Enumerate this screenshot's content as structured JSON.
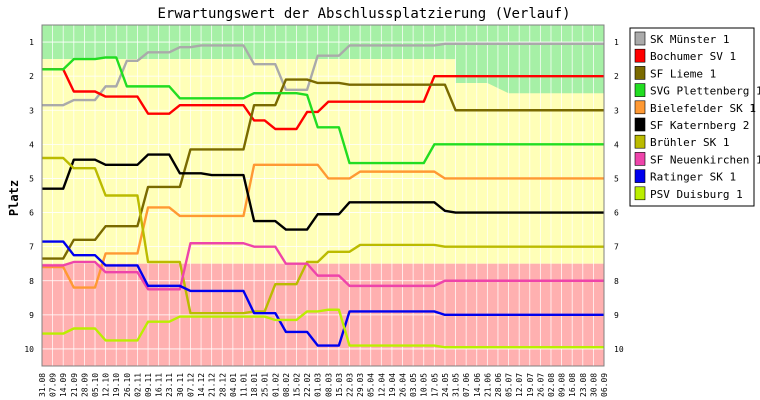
{
  "chart_data": {
    "type": "line",
    "title": "Erwartungswert der Abschlussplatzierung (Verlauf)",
    "ylabel": "Platz",
    "xlabel": "",
    "ylim": [
      0.5,
      10.5
    ],
    "y_inverted": true,
    "yticks": [
      "1",
      "2",
      "3",
      "4",
      "5",
      "6",
      "7",
      "8",
      "9",
      "10"
    ],
    "grid": true,
    "legend_position": "right",
    "background_zones": [
      {
        "name": "top",
        "color": "#a6f0a6",
        "from": 0.5,
        "to": 1.5,
        "until_category": "24.05"
      },
      {
        "name": "middle",
        "color": "#ffffb8",
        "from": 1.5,
        "to": 7.5
      },
      {
        "name": "bottom",
        "color": "#ffb0b0",
        "from": 7.5,
        "to": 10.5
      }
    ],
    "categories": [
      "31.08",
      "07.09",
      "14.09",
      "21.09",
      "28.09",
      "05.10",
      "12.10",
      "19.10",
      "26.10",
      "02.11",
      "09.11",
      "16.11",
      "23.11",
      "30.11",
      "07.12",
      "14.12",
      "21.12",
      "28.12",
      "04.01",
      "11.01",
      "18.01",
      "25.01",
      "01.02",
      "08.02",
      "15.02",
      "22.02",
      "01.03",
      "08.03",
      "15.03",
      "22.03",
      "29.03",
      "05.04",
      "12.04",
      "19.04",
      "26.04",
      "03.05",
      "10.05",
      "17.05",
      "24.05",
      "31.05",
      "07.06",
      "14.06",
      "21.06",
      "28.06",
      "05.07",
      "12.07",
      "19.07",
      "26.07",
      "02.08",
      "09.08",
      "16.08",
      "23.08",
      "30.08",
      "06.09"
    ],
    "series": [
      {
        "name": "SK Münster 1",
        "color": "#aaaaaa",
        "values": [
          2.85,
          2.85,
          2.85,
          2.7,
          2.7,
          2.7,
          2.3,
          2.3,
          1.55,
          1.55,
          1.3,
          1.3,
          1.3,
          1.15,
          1.15,
          1.1,
          1.1,
          1.1,
          1.1,
          1.1,
          1.65,
          1.65,
          1.65,
          2.4,
          2.4,
          2.4,
          1.4,
          1.4,
          1.4,
          1.1,
          1.1,
          1.1,
          1.1,
          1.1,
          1.1,
          1.1,
          1.1,
          1.1,
          1.05,
          1.05,
          1.05,
          1.05,
          1.05,
          1.05,
          1.05,
          1.05,
          1.05,
          1.05,
          1.05,
          1.05,
          1.05,
          1.05,
          1.05,
          1.05
        ]
      },
      {
        "name": "Bochumer SV 1",
        "color": "#ff0000",
        "values": [
          1.8,
          1.8,
          1.8,
          2.45,
          2.45,
          2.45,
          2.6,
          2.6,
          2.6,
          2.6,
          3.1,
          3.1,
          3.1,
          2.85,
          2.85,
          2.85,
          2.85,
          2.85,
          2.85,
          2.85,
          3.3,
          3.3,
          3.55,
          3.55,
          3.55,
          3.05,
          3.05,
          2.75,
          2.75,
          2.75,
          2.75,
          2.75,
          2.75,
          2.75,
          2.75,
          2.75,
          2.75,
          2.0,
          2.0,
          2.0,
          2.0,
          2.0,
          2.0,
          2.0,
          2.0,
          2.0,
          2.0,
          2.0,
          2.0,
          2.0,
          2.0,
          2.0,
          2.0,
          2.0
        ]
      },
      {
        "name": "SF Lieme 1",
        "color": "#7a6a00",
        "values": [
          7.35,
          7.35,
          7.35,
          6.8,
          6.8,
          6.8,
          6.4,
          6.4,
          6.4,
          6.4,
          5.25,
          5.25,
          5.25,
          5.25,
          4.15,
          4.15,
          4.15,
          4.15,
          4.15,
          4.15,
          2.85,
          2.85,
          2.85,
          2.1,
          2.1,
          2.1,
          2.2,
          2.2,
          2.2,
          2.25,
          2.25,
          2.25,
          2.25,
          2.25,
          2.25,
          2.25,
          2.25,
          2.25,
          2.25,
          3.0,
          3.0,
          3.0,
          3.0,
          3.0,
          3.0,
          3.0,
          3.0,
          3.0,
          3.0,
          3.0,
          3.0,
          3.0,
          3.0,
          3.0
        ]
      },
      {
        "name": "SVG Plettenberg 1",
        "color": "#22dd22",
        "values": [
          1.8,
          1.8,
          1.8,
          1.5,
          1.5,
          1.5,
          1.45,
          1.45,
          2.3,
          2.3,
          2.3,
          2.3,
          2.3,
          2.65,
          2.65,
          2.65,
          2.65,
          2.65,
          2.65,
          2.65,
          2.5,
          2.5,
          2.5,
          2.5,
          2.5,
          2.55,
          3.5,
          3.5,
          3.5,
          4.55,
          4.55,
          4.55,
          4.55,
          4.55,
          4.55,
          4.55,
          4.55,
          4.0,
          4.0,
          4.0,
          4.0,
          4.0,
          4.0,
          4.0,
          4.0,
          4.0,
          4.0,
          4.0,
          4.0,
          4.0,
          4.0,
          4.0,
          4.0,
          4.0
        ]
      },
      {
        "name": "Bielefelder SK 1",
        "color": "#ff9933",
        "values": [
          7.6,
          7.6,
          7.6,
          8.2,
          8.2,
          8.2,
          7.2,
          7.2,
          7.2,
          7.2,
          5.85,
          5.85,
          5.85,
          6.1,
          6.1,
          6.1,
          6.1,
          6.1,
          6.1,
          6.1,
          4.6,
          4.6,
          4.6,
          4.6,
          4.6,
          4.6,
          4.6,
          5.0,
          5.0,
          5.0,
          4.8,
          4.8,
          4.8,
          4.8,
          4.8,
          4.8,
          4.8,
          4.8,
          5.0,
          5.0,
          5.0,
          5.0,
          5.0,
          5.0,
          5.0,
          5.0,
          5.0,
          5.0,
          5.0,
          5.0,
          5.0,
          5.0,
          5.0,
          5.0
        ]
      },
      {
        "name": "SF Katernberg 2",
        "color": "#000000",
        "values": [
          5.3,
          5.3,
          5.3,
          4.45,
          4.45,
          4.45,
          4.6,
          4.6,
          4.6,
          4.6,
          4.3,
          4.3,
          4.3,
          4.85,
          4.85,
          4.85,
          4.9,
          4.9,
          4.9,
          4.9,
          6.25,
          6.25,
          6.25,
          6.5,
          6.5,
          6.5,
          6.05,
          6.05,
          6.05,
          5.7,
          5.7,
          5.7,
          5.7,
          5.7,
          5.7,
          5.7,
          5.7,
          5.7,
          5.95,
          6.0,
          6.0,
          6.0,
          6.0,
          6.0,
          6.0,
          6.0,
          6.0,
          6.0,
          6.0,
          6.0,
          6.0,
          6.0,
          6.0,
          6.0
        ]
      },
      {
        "name": "Brühler SK 1",
        "color": "#bbbb00",
        "values": [
          4.4,
          4.4,
          4.4,
          4.7,
          4.7,
          4.7,
          5.5,
          5.5,
          5.5,
          5.5,
          7.45,
          7.45,
          7.45,
          7.45,
          8.95,
          8.95,
          8.95,
          8.95,
          8.95,
          8.95,
          8.9,
          8.9,
          8.1,
          8.1,
          8.1,
          7.45,
          7.45,
          7.15,
          7.15,
          7.15,
          6.95,
          6.95,
          6.95,
          6.95,
          6.95,
          6.95,
          6.95,
          6.95,
          7.0,
          7.0,
          7.0,
          7.0,
          7.0,
          7.0,
          7.0,
          7.0,
          7.0,
          7.0,
          7.0,
          7.0,
          7.0,
          7.0,
          7.0,
          7.0
        ]
      },
      {
        "name": "SF Neuenkirchen 1",
        "color": "#ee44aa",
        "values": [
          7.55,
          7.55,
          7.55,
          7.45,
          7.45,
          7.45,
          7.75,
          7.75,
          7.75,
          7.75,
          8.25,
          8.25,
          8.25,
          8.25,
          6.9,
          6.9,
          6.9,
          6.9,
          6.9,
          6.9,
          7.0,
          7.0,
          7.0,
          7.5,
          7.5,
          7.5,
          7.85,
          7.85,
          7.85,
          8.15,
          8.15,
          8.15,
          8.15,
          8.15,
          8.15,
          8.15,
          8.15,
          8.15,
          8.0,
          8.0,
          8.0,
          8.0,
          8.0,
          8.0,
          8.0,
          8.0,
          8.0,
          8.0,
          8.0,
          8.0,
          8.0,
          8.0,
          8.0,
          8.0
        ]
      },
      {
        "name": "Ratinger SK 1",
        "color": "#0000ee",
        "values": [
          6.85,
          6.85,
          6.85,
          7.25,
          7.25,
          7.25,
          7.55,
          7.55,
          7.55,
          7.55,
          8.15,
          8.15,
          8.15,
          8.15,
          8.3,
          8.3,
          8.3,
          8.3,
          8.3,
          8.3,
          8.95,
          8.95,
          8.95,
          9.5,
          9.5,
          9.5,
          9.9,
          9.9,
          9.9,
          8.9,
          8.9,
          8.9,
          8.9,
          8.9,
          8.9,
          8.9,
          8.9,
          8.9,
          9.0,
          9.0,
          9.0,
          9.0,
          9.0,
          9.0,
          9.0,
          9.0,
          9.0,
          9.0,
          9.0,
          9.0,
          9.0,
          9.0,
          9.0,
          9.0
        ]
      },
      {
        "name": "PSV Duisburg 1",
        "color": "#bbee00",
        "values": [
          9.55,
          9.55,
          9.55,
          9.4,
          9.4,
          9.4,
          9.75,
          9.75,
          9.75,
          9.75,
          9.2,
          9.2,
          9.2,
          9.05,
          9.05,
          9.05,
          9.05,
          9.05,
          9.05,
          9.05,
          9.05,
          9.05,
          9.15,
          9.15,
          9.15,
          8.9,
          8.9,
          8.85,
          8.85,
          9.9,
          9.9,
          9.9,
          9.9,
          9.9,
          9.9,
          9.9,
          9.9,
          9.9,
          9.95,
          9.95,
          9.95,
          9.95,
          9.95,
          9.95,
          9.95,
          9.95,
          9.95,
          9.95,
          9.95,
          9.95,
          9.95,
          9.95,
          9.95,
          9.95
        ]
      }
    ]
  }
}
